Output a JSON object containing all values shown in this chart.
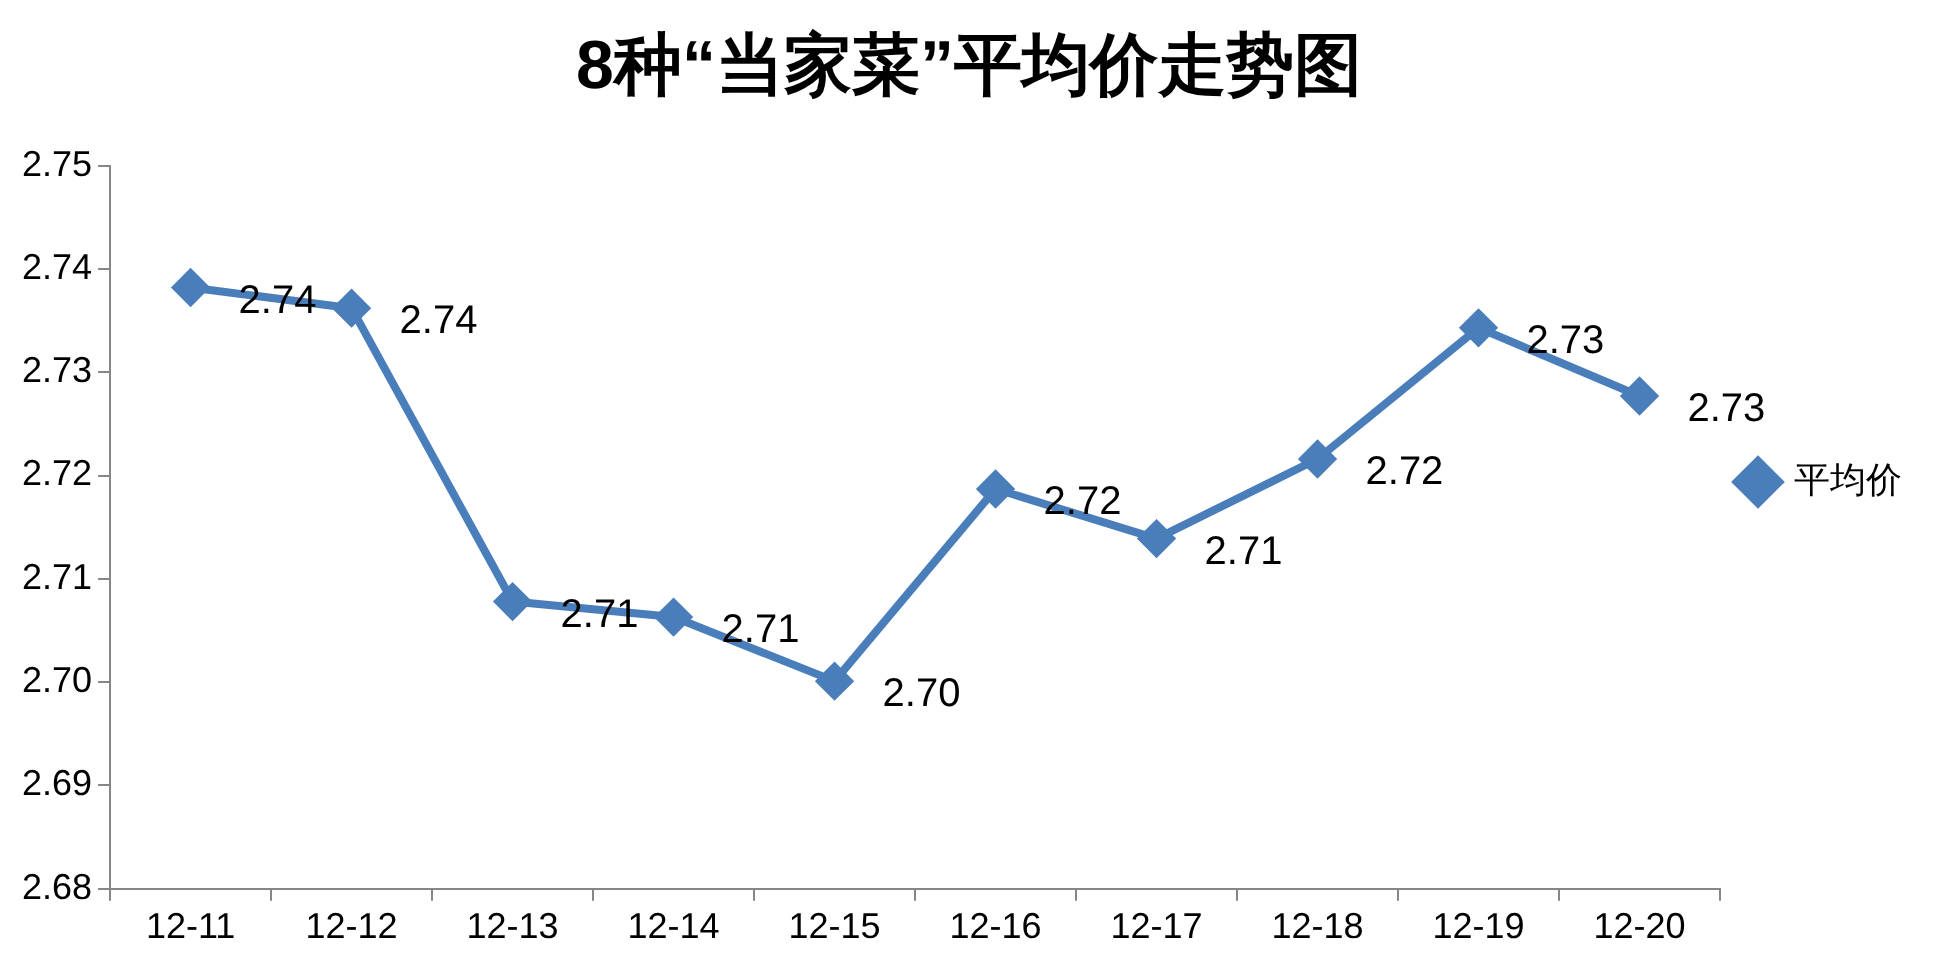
{
  "chart_data": {
    "type": "line",
    "title": "8种“当家菜”平均价走势图",
    "categories": [
      "12-11",
      "12-12",
      "12-13",
      "12-14",
      "12-15",
      "12-16",
      "12-17",
      "12-18",
      "12-19",
      "12-20"
    ],
    "series": [
      {
        "name": "平均价",
        "color": "#4a7ebb",
        "values": [
          2.7382,
          2.7362,
          2.7078,
          2.7063,
          2.7001,
          2.7187,
          2.7139,
          2.7216,
          2.7343,
          2.7277
        ],
        "value_labels": [
          "2.74",
          "2.74",
          "2.71",
          "2.71",
          "2.70",
          "2.72",
          "2.71",
          "2.72",
          "2.73",
          "2.73"
        ]
      }
    ],
    "ylim": [
      2.68,
      2.75
    ],
    "yticks": [
      {
        "value": 2.68,
        "label": "2.68"
      },
      {
        "value": 2.69,
        "label": "2.69"
      },
      {
        "value": 2.7,
        "label": "2.70"
      },
      {
        "value": 2.71,
        "label": "2.71"
      },
      {
        "value": 2.72,
        "label": "2.72"
      },
      {
        "value": 2.73,
        "label": "2.73"
      },
      {
        "value": 2.74,
        "label": "2.74"
      },
      {
        "value": 2.75,
        "label": "2.75"
      }
    ],
    "grid": false,
    "legend": "right",
    "marker": "diamond",
    "line_style": "solid"
  }
}
